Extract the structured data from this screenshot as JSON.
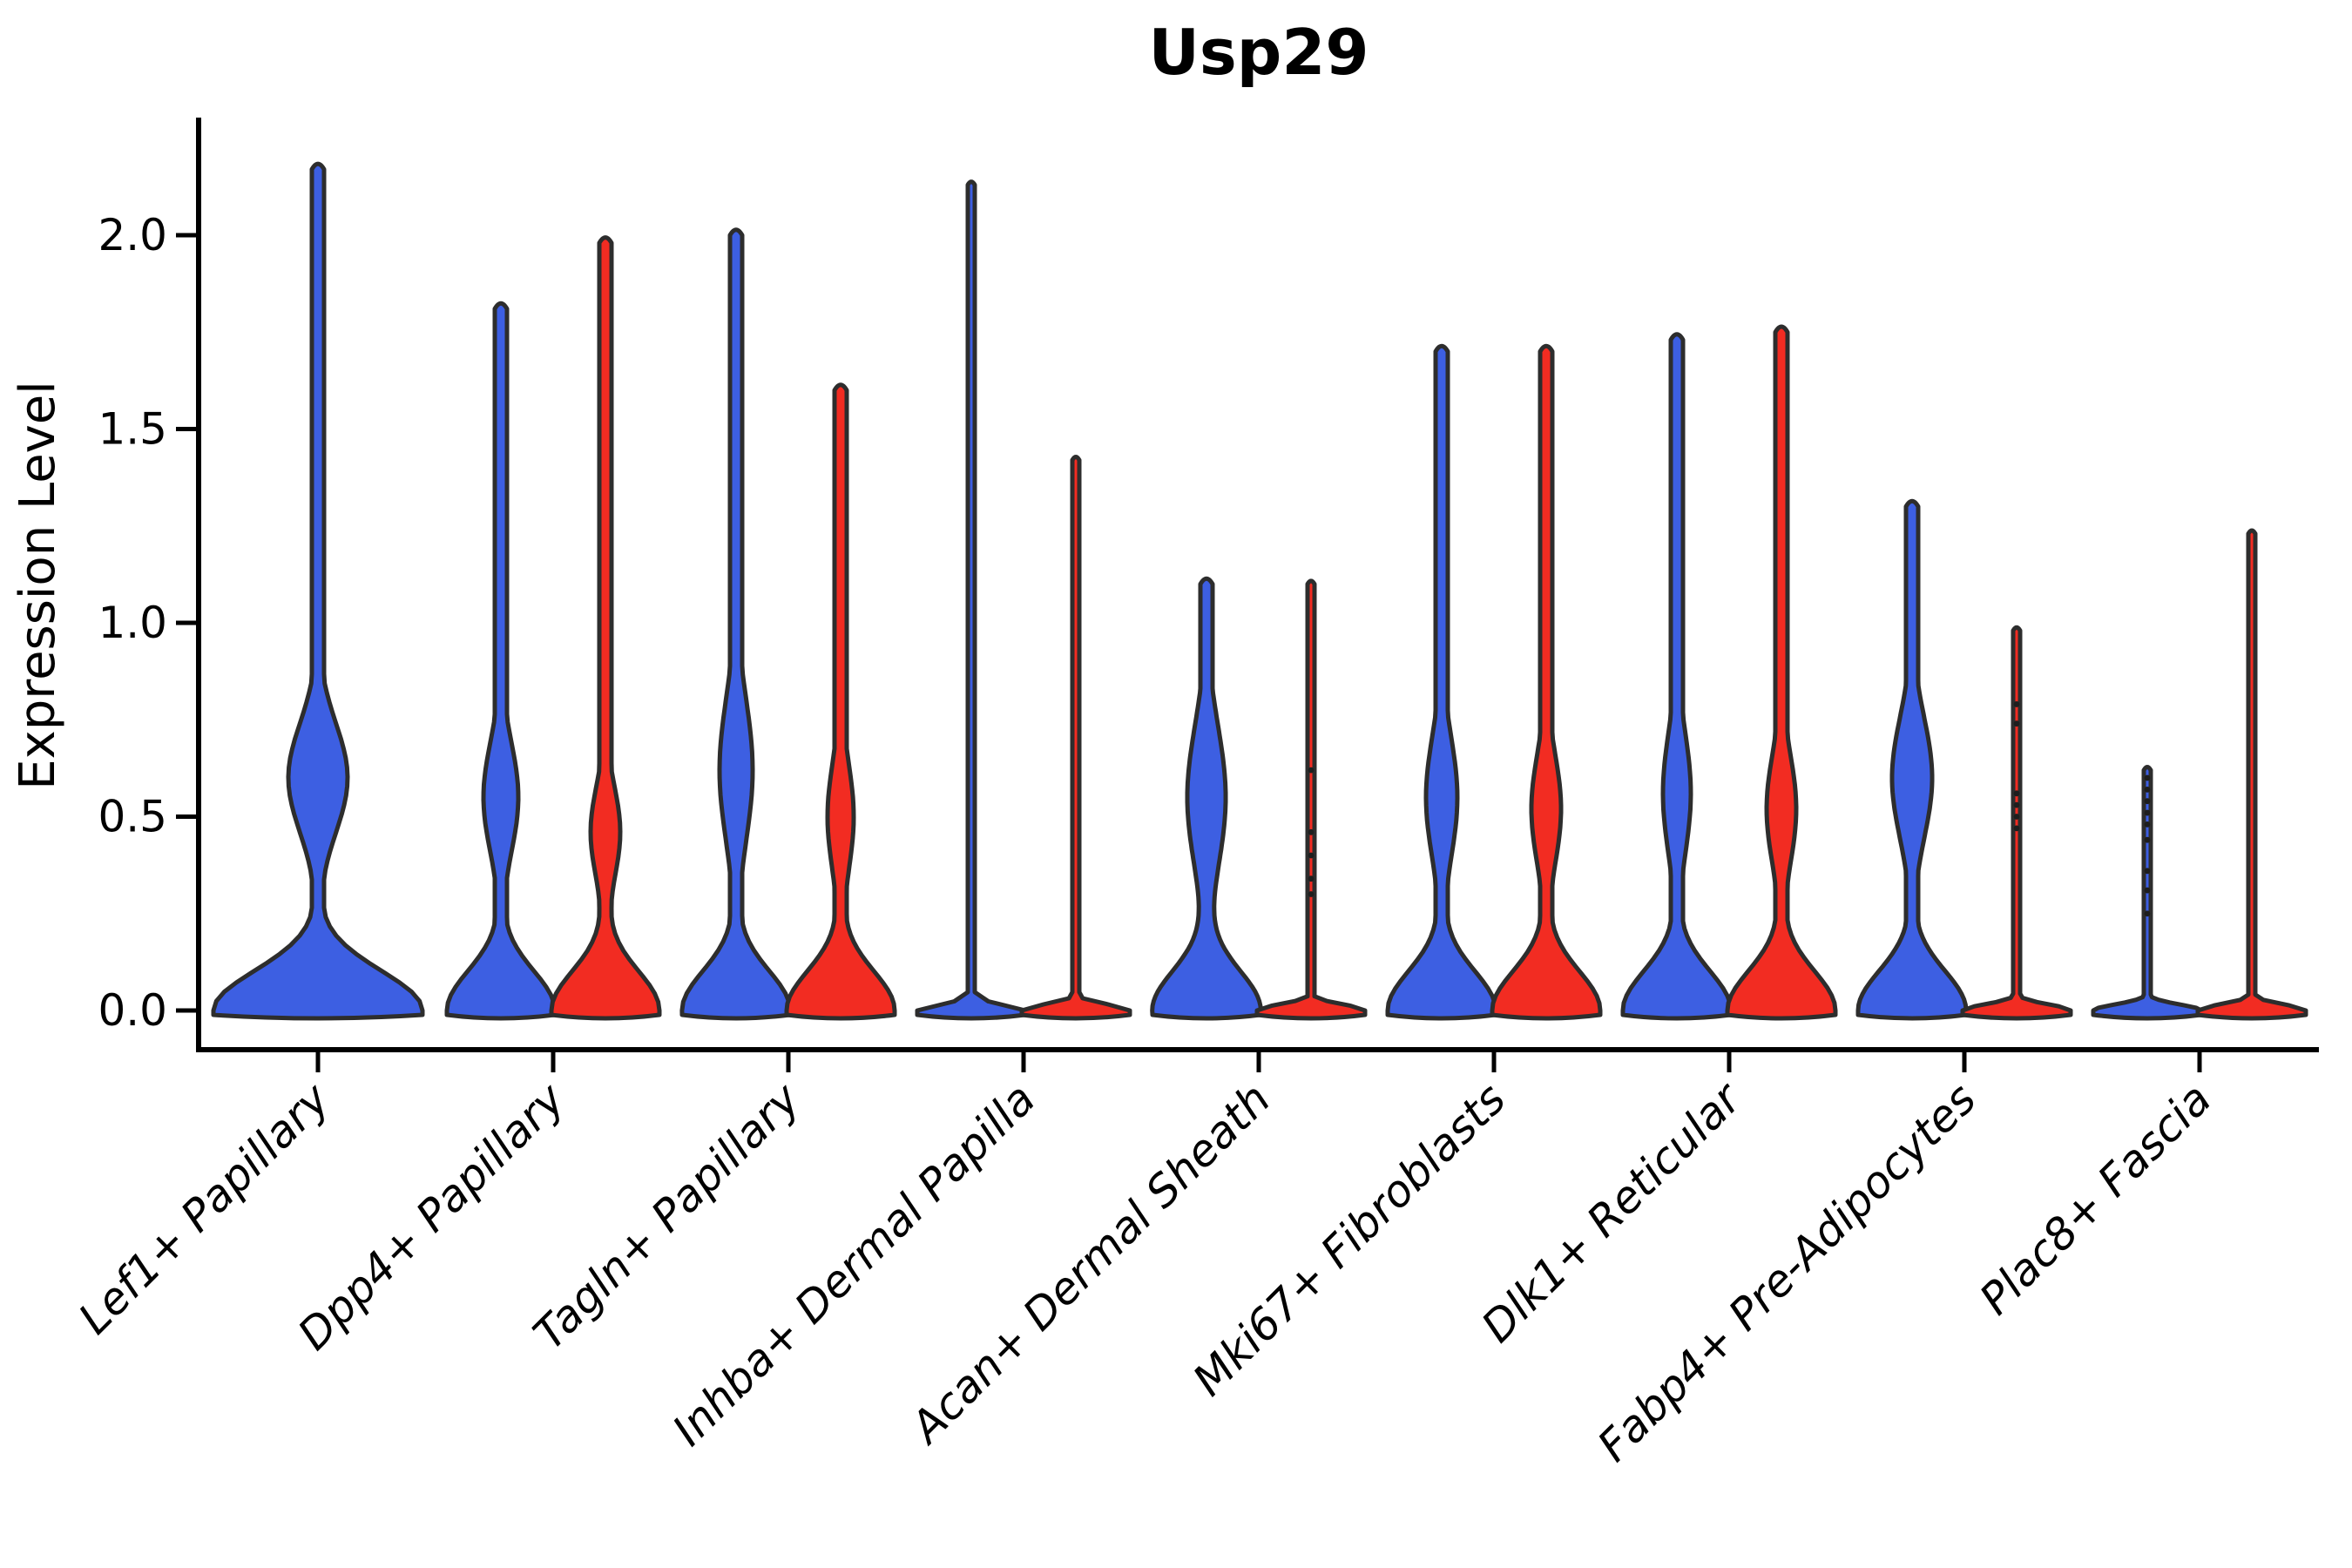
{
  "chart_data": {
    "type": "violin",
    "title": "Usp29",
    "ylabel": "Expression Level",
    "legend": "none",
    "grid": false,
    "x_tick_rotation_deg": 45,
    "ylim": [
      -0.1,
      2.3
    ],
    "y_ticks": [
      {
        "value": 0.0,
        "label": "0.0"
      },
      {
        "value": 0.5,
        "label": "0.5"
      },
      {
        "value": 1.0,
        "label": "1.0"
      },
      {
        "value": 1.5,
        "label": "1.5"
      },
      {
        "value": 2.0,
        "label": "2.0"
      }
    ],
    "categories": [
      "Lef1+ Papillary",
      "Dpp4+ Papillary",
      "Tagln+ Papillary",
      "Inhba+ Dermal Papilla",
      "Acan+ Dermal Sheath",
      "Mki67+ Fibroblasts",
      "Dlk1+ Reticular",
      "Fabp4+ Pre-Adipocytes",
      "Plac8+ Fascia"
    ],
    "series": [
      {
        "key": "blue",
        "color": "#3D5FE2"
      },
      {
        "key": "red",
        "color": "#F22C22"
      }
    ],
    "colors": {
      "blue": "#3D5FE2",
      "red": "#F22C22",
      "outline": "#2D2D2D",
      "dots": "#1E1E1E",
      "axis": "#000000",
      "background": "#FFFFFF"
    },
    "groups": [
      {
        "category": "Lef1+ Papillary",
        "violins": [
          {
            "series": "blue",
            "kind": "full",
            "dodge": 0,
            "max": 2.17,
            "base_halfwidth": 120,
            "bulge_center": 0.6,
            "bulge_halfwidth": 34,
            "bulge_sigma": 0.2
          }
        ]
      },
      {
        "category": "Dpp4+ Papillary",
        "violins": [
          {
            "series": "blue",
            "kind": "full",
            "dodge": -60,
            "max": 1.81,
            "base_halfwidth": 62,
            "bulge_center": 0.55,
            "bulge_halfwidth": 20,
            "bulge_sigma": 0.2
          },
          {
            "series": "red",
            "kind": "full",
            "dodge": 60,
            "max": 1.98,
            "base_halfwidth": 62,
            "bulge_center": 0.46,
            "bulge_halfwidth": 17,
            "bulge_sigma": 0.17
          }
        ]
      },
      {
        "category": "Tagln+ Papillary",
        "violins": [
          {
            "series": "blue",
            "kind": "full",
            "dodge": -60,
            "max": 2.0,
            "base_halfwidth": 62,
            "bulge_center": 0.62,
            "bulge_halfwidth": 19,
            "bulge_sigma": 0.26
          },
          {
            "series": "red",
            "kind": "full",
            "dodge": 60,
            "max": 1.6,
            "base_halfwidth": 62,
            "bulge_center": 0.5,
            "bulge_halfwidth": 15,
            "bulge_sigma": 0.2
          }
        ]
      },
      {
        "category": "Inhba+ Dermal Papilla",
        "violins": [
          {
            "series": "blue",
            "kind": "spike",
            "dodge": -60,
            "max": 2.13,
            "base_halfwidth": 62
          },
          {
            "series": "red",
            "kind": "spike",
            "dodge": 60,
            "max": 1.42,
            "base_halfwidth": 62
          }
        ]
      },
      {
        "category": "Acan+ Dermal Sheath",
        "violins": [
          {
            "series": "blue",
            "kind": "full",
            "dodge": -60,
            "max": 1.1,
            "base_halfwidth": 62,
            "bulge_center": 0.55,
            "bulge_halfwidth": 22,
            "bulge_sigma": 0.26
          },
          {
            "series": "red",
            "kind": "spike",
            "dodge": 60,
            "max": 1.1,
            "base_halfwidth": 62,
            "dots": [
              0.3,
              0.34,
              0.4,
              0.46,
              0.62
            ]
          }
        ]
      },
      {
        "category": "Mki67+ Fibroblasts",
        "violins": [
          {
            "series": "blue",
            "kind": "full",
            "dodge": -60,
            "max": 1.7,
            "base_halfwidth": 62,
            "bulge_center": 0.55,
            "bulge_halfwidth": 18,
            "bulge_sigma": 0.22
          },
          {
            "series": "red",
            "kind": "full",
            "dodge": 60,
            "max": 1.7,
            "base_halfwidth": 62,
            "bulge_center": 0.52,
            "bulge_halfwidth": 17,
            "bulge_sigma": 0.2
          }
        ]
      },
      {
        "category": "Dlk1+ Reticular",
        "violins": [
          {
            "series": "blue",
            "kind": "full",
            "dodge": -60,
            "max": 1.73,
            "base_halfwidth": 62,
            "bulge_center": 0.56,
            "bulge_halfwidth": 16,
            "bulge_sigma": 0.22
          },
          {
            "series": "red",
            "kind": "full",
            "dodge": 60,
            "max": 1.75,
            "base_halfwidth": 62,
            "bulge_center": 0.52,
            "bulge_halfwidth": 17,
            "bulge_sigma": 0.2
          }
        ]
      },
      {
        "category": "Fabp4+ Pre-Adipocytes",
        "violins": [
          {
            "series": "blue",
            "kind": "full",
            "dodge": -60,
            "max": 1.3,
            "base_halfwidth": 62,
            "bulge_center": 0.6,
            "bulge_halfwidth": 23,
            "bulge_sigma": 0.22
          },
          {
            "series": "red",
            "kind": "spike",
            "dodge": 60,
            "max": 0.98,
            "base_halfwidth": 62,
            "dots": [
              0.47,
              0.5,
              0.53,
              0.56,
              0.74,
              0.79
            ]
          }
        ]
      },
      {
        "category": "Plac8+ Fascia",
        "violins": [
          {
            "series": "blue",
            "kind": "spike",
            "dodge": -60,
            "max": 0.62,
            "base_halfwidth": 62,
            "dots": [
              0.25,
              0.31,
              0.36,
              0.44,
              0.48,
              0.51,
              0.54,
              0.57,
              0.6
            ]
          },
          {
            "series": "red",
            "kind": "spike",
            "dodge": 60,
            "max": 1.23,
            "base_halfwidth": 62
          }
        ]
      }
    ]
  }
}
